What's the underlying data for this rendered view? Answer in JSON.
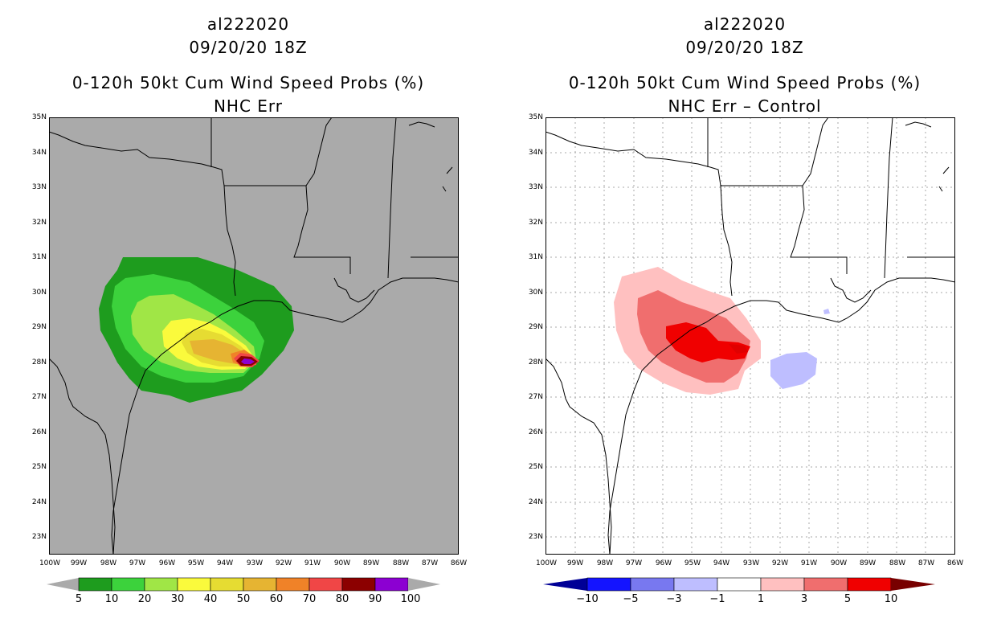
{
  "panels": [
    {
      "storm_id": "al222020",
      "datetime": "09/20/20 18Z",
      "product": "0-120h 50kt Cum Wind Speed Probs (%)",
      "subtitle": "NHC Err",
      "lat_labels": [
        "35N",
        "34N",
        "33N",
        "32N",
        "31N",
        "30N",
        "29N",
        "28N",
        "27N",
        "26N",
        "25N",
        "24N",
        "23N"
      ],
      "lon_labels": [
        "100W",
        "99W",
        "98W",
        "97W",
        "96W",
        "95W",
        "94W",
        "93W",
        "92W",
        "91W",
        "90W",
        "89W",
        "88W",
        "87W",
        "86W"
      ],
      "colorbar": {
        "colors": [
          "#1e9c1e",
          "#3cd23c",
          "#a0e646",
          "#fafa3c",
          "#e6dc32",
          "#e6b432",
          "#f08228",
          "#f04646",
          "#8c0000",
          "#8c00d2"
        ],
        "end_colors": [
          "#aaaaaa",
          "#aaaaaa"
        ],
        "labels": [
          "5",
          "10",
          "20",
          "30",
          "40",
          "50",
          "60",
          "70",
          "80",
          "90",
          "100"
        ]
      },
      "background": "#aaaaaa"
    },
    {
      "storm_id": "al222020",
      "datetime": "09/20/20 18Z",
      "product": "0-120h 50kt Cum Wind Speed Probs (%)",
      "subtitle": "NHC Err – Control",
      "lat_labels": [
        "35N",
        "34N",
        "33N",
        "32N",
        "31N",
        "30N",
        "29N",
        "28N",
        "27N",
        "26N",
        "25N",
        "24N",
        "23N"
      ],
      "lon_labels": [
        "100W",
        "99W",
        "98W",
        "97W",
        "96W",
        "95W",
        "94W",
        "93W",
        "92W",
        "91W",
        "90W",
        "89W",
        "88W",
        "87W",
        "86W"
      ],
      "colorbar": {
        "colors": [
          "#1414ff",
          "#7878f0",
          "#bebeff",
          "#ffffff",
          "#ffc0c0",
          "#f06e6e",
          "#f00000"
        ],
        "end_colors": [
          "#000096",
          "#780000"
        ],
        "labels": [
          "−10",
          "−5",
          "−3",
          "−1",
          "1",
          "3",
          "5",
          "10"
        ]
      },
      "background": "#ffffff"
    }
  ]
}
